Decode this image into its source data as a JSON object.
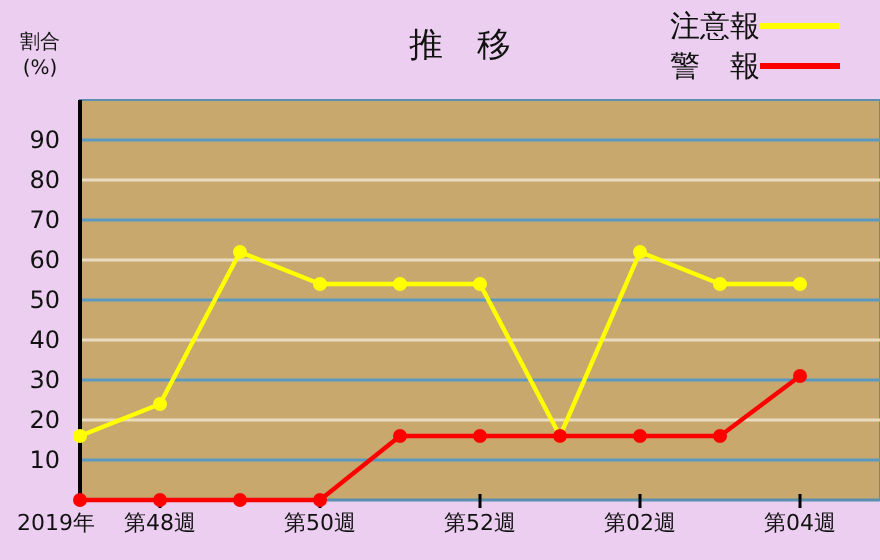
{
  "chart_data": {
    "type": "line",
    "title": "推　移",
    "ylabel": "割合\n(%)",
    "categories": [
      "2019年",
      "第48週",
      null,
      "第50週",
      null,
      "第52週",
      null,
      "第02週",
      null,
      "第04週"
    ],
    "series": [
      {
        "name": "注意報",
        "color": "#ffff00",
        "values": [
          16,
          24,
          62,
          54,
          54,
          54,
          16,
          62,
          54,
          54
        ]
      },
      {
        "name": "警　報",
        "color": "#ff0000",
        "values": [
          0,
          0,
          0,
          0,
          16,
          16,
          16,
          16,
          16,
          31
        ]
      }
    ],
    "ylim": [
      0,
      100
    ],
    "yticks": [
      10,
      20,
      30,
      40,
      50,
      60,
      70,
      80,
      90
    ],
    "grid": "y",
    "legend": "top right",
    "marker": "circle"
  }
}
